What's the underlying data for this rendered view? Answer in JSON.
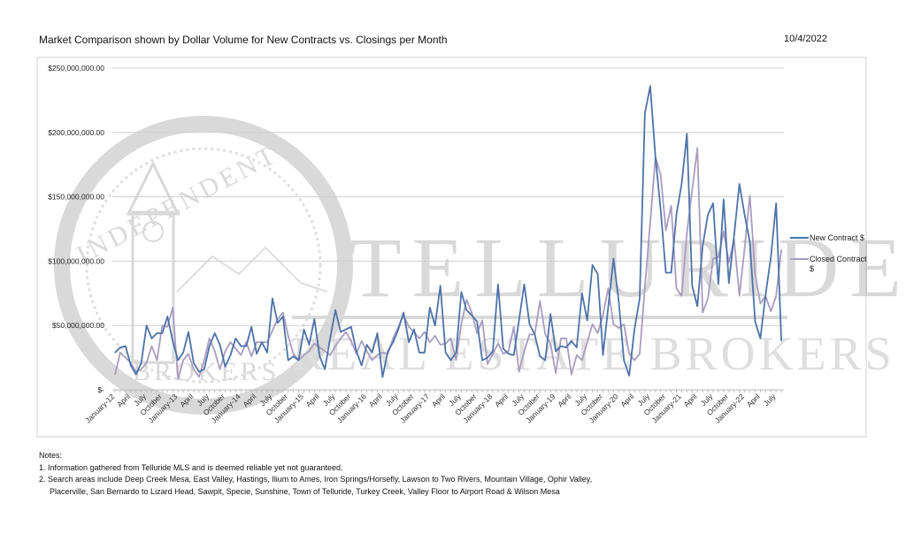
{
  "header": {
    "title": "Market Comparison shown by Dollar Volume for New Contracts vs. Closings per Month",
    "date": "10/4/2022"
  },
  "notes": {
    "heading": "Notes:",
    "items": [
      "1. Information gathered from Telluride MLS and is deemed reliable yet not guaranteed.",
      "2. Search areas include Deep Creek Mesa, East Valley, Hastings, Ilium to Ames, Iron Springs/Horsefly, Lawson to Two Rivers, Mountain Village, Ophir Valley,",
      "Placerville, San Bernardo to Lizard Head, Sawpit, Specie, Sunshine, Town of Telluride, Turkey Creek, Valley Floor to Airport Road & Wilson Mesa"
    ]
  },
  "watermark": {
    "seal_top": "INDEPENDENT",
    "seal_bottom": "BROKERS",
    "brand_line1": "TELLURIDE",
    "brand_line2": "REAL ESTATE BROKERS"
  },
  "chart_data": {
    "type": "line",
    "title": "",
    "xlabel": "",
    "ylabel": "",
    "ylim": [
      0,
      250000000
    ],
    "y_ticks": [
      "$-",
      "$50,000,000.00",
      "$100,000,000.00",
      "$150,000,000.00",
      "$200,000,000.00",
      "$250,000,000.00"
    ],
    "x_range": [
      "January-12",
      "August-22"
    ],
    "x_tick_labels": [
      "January-12",
      "April",
      "July",
      "October",
      "January-13",
      "April",
      "July",
      "October",
      "January-14",
      "April",
      "July",
      "October",
      "January-15",
      "April",
      "July",
      "October",
      "January-16",
      "April",
      "July",
      "October",
      "January-17",
      "April",
      "July",
      "October",
      "January-18",
      "April",
      "July",
      "October",
      "January-19",
      "April",
      "July",
      "October",
      "January-20",
      "April",
      "July",
      "October",
      "January-21",
      "April",
      "July",
      "October",
      "January-22",
      "April",
      "July"
    ],
    "grid": "horizontal",
    "legend": "right",
    "series": [
      {
        "name": "New Contract $",
        "color": "#4d72a8",
        "values": [
          29000000,
          33000000,
          34000000,
          19000000,
          12000000,
          21000000,
          50000000,
          40000000,
          44000000,
          44000000,
          57000000,
          38000000,
          23000000,
          29000000,
          45000000,
          21000000,
          14000000,
          16000000,
          34000000,
          44000000,
          35000000,
          18000000,
          27000000,
          40000000,
          34000000,
          34000000,
          49000000,
          28000000,
          37000000,
          29000000,
          71000000,
          52000000,
          57000000,
          23000000,
          26000000,
          23000000,
          47000000,
          35000000,
          55000000,
          26000000,
          16000000,
          40000000,
          62000000,
          45000000,
          47000000,
          49000000,
          30000000,
          19000000,
          35000000,
          29000000,
          44000000,
          10000000,
          30000000,
          37000000,
          47000000,
          60000000,
          37000000,
          47000000,
          29000000,
          29000000,
          64000000,
          50000000,
          81000000,
          29000000,
          23000000,
          29000000,
          76000000,
          62000000,
          58000000,
          53000000,
          23000000,
          25000000,
          30000000,
          82000000,
          32000000,
          28000000,
          27000000,
          54000000,
          82000000,
          51000000,
          43000000,
          26000000,
          23000000,
          59000000,
          30000000,
          34000000,
          33000000,
          38000000,
          33000000,
          75000000,
          54000000,
          97000000,
          90000000,
          27000000,
          64000000,
          102000000,
          69000000,
          23000000,
          11000000,
          47000000,
          71000000,
          215000000,
          236000000,
          181000000,
          140000000,
          91000000,
          91000000,
          136000000,
          160000000,
          199000000,
          81000000,
          65000000,
          112000000,
          136000000,
          145000000,
          82000000,
          148000000,
          83000000,
          120000000,
          160000000,
          136000000,
          115000000,
          53000000,
          40000000,
          74000000,
          103000000,
          145000000,
          38000000
        ]
      },
      {
        "name": "Closed Contract $",
        "color": "#a99cc0",
        "values": [
          12000000,
          29000000,
          25000000,
          21000000,
          14000000,
          16000000,
          21000000,
          34000000,
          23000000,
          50000000,
          49000000,
          64000000,
          8000000,
          23000000,
          28000000,
          16000000,
          10000000,
          23000000,
          40000000,
          30000000,
          16000000,
          30000000,
          37000000,
          32000000,
          27000000,
          37000000,
          26000000,
          37000000,
          37000000,
          37000000,
          46000000,
          55000000,
          60000000,
          42000000,
          28000000,
          23000000,
          27000000,
          30000000,
          36000000,
          33000000,
          30000000,
          27000000,
          34000000,
          40000000,
          45000000,
          38000000,
          28000000,
          38000000,
          30000000,
          23000000,
          27000000,
          29000000,
          28000000,
          40000000,
          49000000,
          58000000,
          49000000,
          45000000,
          40000000,
          45000000,
          37000000,
          42000000,
          35000000,
          36000000,
          40000000,
          23000000,
          51000000,
          70000000,
          60000000,
          44000000,
          54000000,
          20000000,
          28000000,
          36000000,
          28000000,
          30000000,
          49000000,
          14000000,
          30000000,
          43000000,
          43000000,
          69000000,
          43000000,
          36000000,
          13000000,
          40000000,
          40000000,
          12000000,
          27000000,
          23000000,
          37000000,
          51000000,
          44000000,
          58000000,
          79000000,
          51000000,
          48000000,
          51000000,
          28000000,
          23000000,
          28000000,
          80000000,
          130000000,
          181000000,
          167000000,
          124000000,
          143000000,
          79000000,
          73000000,
          122000000,
          155000000,
          188000000,
          60000000,
          71000000,
          102000000,
          103000000,
          123000000,
          99000000,
          117000000,
          73000000,
          110000000,
          151000000,
          90000000,
          67000000,
          73000000,
          61000000,
          73000000,
          109000000
        ]
      }
    ]
  }
}
